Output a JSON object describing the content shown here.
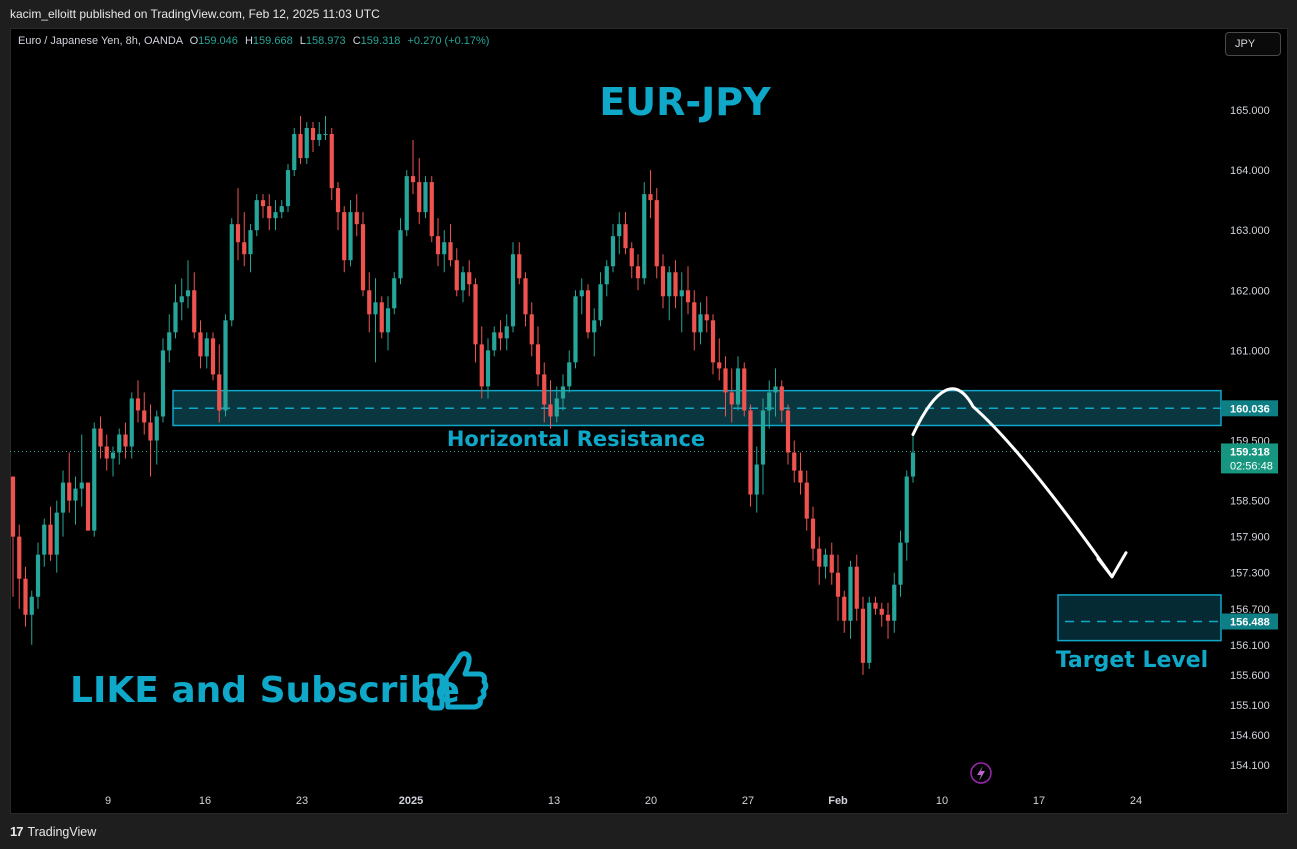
{
  "header": {
    "publisher_text": "kacim_elloitt published on TradingView.com, Feb 12, 2025 11:03 UTC"
  },
  "legend": {
    "symbol": "Euro / Japanese Yen, 8h, OANDA",
    "open_label": "O",
    "open": "159.046",
    "high_label": "H",
    "high": "159.668",
    "low_label": "L",
    "low": "158.973",
    "close_label": "C",
    "close": "159.318",
    "change": "+0.270 (+0.17%)"
  },
  "currency_button": "JPY",
  "footer": {
    "brand": "TradingView",
    "logo_text": "17"
  },
  "colors": {
    "up": "#26a69a",
    "down": "#ef5350",
    "accent": "#0fa8c9",
    "zone_fill": "#0b3f4a",
    "price_tag": "#0f7f86",
    "current_tag": "#17967f"
  },
  "icons": {
    "flash": "lightning-icon",
    "thumbs": "thumbs-up-icon"
  },
  "chart_data": {
    "type": "candlestick",
    "title": "EUR-JPY",
    "timeframe": "8h",
    "ylim": [
      153.8,
      166.0
    ],
    "y_ticks": [
      "165.000",
      "164.000",
      "163.000",
      "162.000",
      "161.000",
      "159.500",
      "158.500",
      "157.900",
      "157.300",
      "156.700",
      "156.100",
      "155.600",
      "155.100",
      "154.600",
      "154.100"
    ],
    "x_ticks": [
      "9",
      "16",
      "23",
      "2025",
      "13",
      "20",
      "27",
      "Feb",
      "10",
      "17",
      "24"
    ],
    "price_labels": {
      "resistance": "160.036",
      "current": "159.318",
      "countdown": "02:56:48",
      "target": "156.488"
    },
    "annotations": {
      "resistance_label": "Horizontal Resistance",
      "target_label": "Target Level",
      "promo": "LIKE and Subscribe"
    },
    "resistance_zone": [
      159.75,
      160.33
    ],
    "target_zone": [
      156.17,
      156.93
    ],
    "projection": {
      "from": 159.6,
      "peak": 160.1,
      "to": 156.9
    },
    "candles": [
      [
        158.9,
        158.9,
        156.9,
        157.9
      ],
      [
        157.9,
        158.1,
        156.7,
        157.2
      ],
      [
        157.2,
        157.4,
        156.4,
        156.6
      ],
      [
        156.6,
        157.0,
        156.1,
        156.9
      ],
      [
        156.9,
        157.8,
        156.7,
        157.6
      ],
      [
        157.6,
        158.2,
        157.4,
        158.1
      ],
      [
        158.1,
        158.4,
        157.5,
        157.6
      ],
      [
        157.6,
        158.5,
        157.3,
        158.3
      ],
      [
        158.3,
        159.0,
        157.9,
        158.8
      ],
      [
        158.8,
        159.3,
        158.3,
        158.5
      ],
      [
        158.5,
        158.9,
        158.1,
        158.7
      ],
      [
        158.7,
        159.6,
        158.4,
        158.8
      ],
      [
        158.8,
        158.8,
        158.0,
        158.0
      ],
      [
        158.0,
        159.8,
        157.9,
        159.7
      ],
      [
        159.7,
        159.9,
        159.2,
        159.4
      ],
      [
        159.4,
        159.6,
        159.0,
        159.2
      ],
      [
        159.2,
        159.4,
        158.9,
        159.3
      ],
      [
        159.3,
        159.7,
        159.1,
        159.6
      ],
      [
        159.6,
        159.8,
        159.2,
        159.4
      ],
      [
        159.4,
        160.3,
        159.2,
        160.2
      ],
      [
        160.2,
        160.5,
        159.8,
        160.0
      ],
      [
        160.0,
        160.3,
        159.6,
        159.8
      ],
      [
        159.8,
        160.1,
        158.9,
        159.5
      ],
      [
        159.5,
        160.0,
        159.1,
        159.9
      ],
      [
        159.9,
        161.2,
        159.8,
        161.0
      ],
      [
        161.0,
        161.6,
        160.8,
        161.3
      ],
      [
        161.3,
        162.1,
        161.2,
        161.8
      ],
      [
        161.8,
        162.2,
        161.5,
        161.9
      ],
      [
        161.9,
        162.5,
        161.7,
        162.0
      ],
      [
        162.0,
        162.3,
        161.2,
        161.3
      ],
      [
        161.3,
        161.5,
        160.7,
        160.9
      ],
      [
        160.9,
        161.3,
        160.7,
        161.2
      ],
      [
        161.2,
        161.3,
        160.5,
        160.6
      ],
      [
        160.6,
        161.1,
        159.8,
        160.0
      ],
      [
        160.0,
        161.6,
        159.9,
        161.5
      ],
      [
        161.5,
        163.2,
        161.4,
        163.1
      ],
      [
        163.1,
        163.7,
        162.5,
        162.8
      ],
      [
        162.8,
        163.3,
        162.4,
        162.6
      ],
      [
        162.6,
        163.1,
        162.3,
        163.0
      ],
      [
        163.0,
        163.6,
        162.9,
        163.5
      ],
      [
        163.5,
        163.6,
        163.2,
        163.4
      ],
      [
        163.4,
        163.6,
        163.0,
        163.2
      ],
      [
        163.2,
        163.5,
        163.0,
        163.3
      ],
      [
        163.3,
        163.5,
        163.2,
        163.4
      ],
      [
        163.4,
        164.1,
        163.3,
        164.0
      ],
      [
        164.0,
        164.7,
        163.9,
        164.6
      ],
      [
        164.6,
        164.9,
        164.1,
        164.2
      ],
      [
        164.2,
        164.8,
        164.1,
        164.7
      ],
      [
        164.7,
        164.8,
        164.3,
        164.5
      ],
      [
        164.5,
        164.8,
        164.4,
        164.6
      ],
      [
        164.6,
        164.9,
        164.5,
        164.6
      ],
      [
        164.6,
        164.7,
        163.5,
        163.7
      ],
      [
        163.7,
        163.8,
        163.0,
        163.3
      ],
      [
        163.3,
        163.4,
        162.3,
        162.5
      ],
      [
        162.5,
        163.5,
        162.4,
        163.3
      ],
      [
        163.3,
        163.6,
        162.9,
        163.1
      ],
      [
        163.1,
        163.3,
        161.9,
        162.0
      ],
      [
        162.0,
        162.3,
        161.3,
        161.6
      ],
      [
        161.6,
        162.2,
        160.8,
        161.8
      ],
      [
        161.8,
        161.9,
        161.2,
        161.3
      ],
      [
        161.3,
        161.9,
        161.0,
        161.7
      ],
      [
        161.7,
        162.3,
        161.6,
        162.2
      ],
      [
        162.2,
        163.2,
        162.1,
        163.0
      ],
      [
        163.0,
        164.0,
        162.9,
        163.9
      ],
      [
        163.9,
        164.5,
        163.6,
        163.8
      ],
      [
        163.8,
        164.2,
        163.1,
        163.3
      ],
      [
        163.3,
        163.9,
        163.2,
        163.8
      ],
      [
        163.8,
        163.9,
        162.8,
        162.9
      ],
      [
        162.9,
        163.2,
        162.4,
        162.6
      ],
      [
        162.6,
        163.0,
        162.3,
        162.8
      ],
      [
        162.8,
        163.1,
        162.4,
        162.5
      ],
      [
        162.5,
        162.7,
        161.9,
        162.0
      ],
      [
        162.0,
        162.4,
        161.8,
        162.3
      ],
      [
        162.3,
        162.5,
        161.9,
        162.1
      ],
      [
        162.1,
        162.2,
        160.8,
        161.1
      ],
      [
        161.1,
        161.4,
        160.2,
        160.4
      ],
      [
        160.4,
        161.2,
        160.2,
        161.0
      ],
      [
        161.0,
        161.4,
        160.9,
        161.3
      ],
      [
        161.3,
        161.5,
        161.0,
        161.2
      ],
      [
        161.2,
        161.6,
        161.0,
        161.4
      ],
      [
        161.4,
        162.8,
        161.3,
        162.6
      ],
      [
        162.6,
        162.8,
        162.1,
        162.2
      ],
      [
        162.2,
        162.3,
        161.4,
        161.6
      ],
      [
        161.6,
        161.8,
        160.9,
        161.1
      ],
      [
        161.1,
        161.4,
        160.4,
        160.6
      ],
      [
        160.6,
        160.8,
        159.8,
        160.1
      ],
      [
        160.1,
        160.5,
        159.7,
        159.9
      ],
      [
        159.9,
        160.4,
        159.8,
        160.2
      ],
      [
        160.2,
        160.6,
        160.0,
        160.4
      ],
      [
        160.4,
        161.0,
        160.3,
        160.8
      ],
      [
        160.8,
        162.0,
        160.7,
        161.9
      ],
      [
        161.9,
        162.2,
        161.6,
        162.0
      ],
      [
        162.0,
        162.1,
        161.2,
        161.3
      ],
      [
        161.3,
        161.7,
        160.9,
        161.5
      ],
      [
        161.5,
        162.3,
        161.4,
        162.1
      ],
      [
        162.1,
        162.5,
        161.9,
        162.4
      ],
      [
        162.4,
        163.1,
        162.3,
        162.9
      ],
      [
        162.9,
        163.3,
        162.6,
        163.1
      ],
      [
        163.1,
        163.3,
        162.6,
        162.7
      ],
      [
        162.7,
        162.8,
        162.2,
        162.4
      ],
      [
        162.4,
        162.6,
        162.0,
        162.2
      ],
      [
        162.2,
        163.8,
        162.1,
        163.6
      ],
      [
        163.6,
        164.0,
        163.2,
        163.5
      ],
      [
        163.5,
        163.7,
        162.2,
        162.4
      ],
      [
        162.4,
        162.6,
        161.7,
        161.9
      ],
      [
        161.9,
        162.4,
        161.5,
        162.3
      ],
      [
        162.3,
        162.5,
        161.7,
        161.9
      ],
      [
        161.9,
        162.3,
        161.3,
        162.0
      ],
      [
        162.0,
        162.4,
        161.6,
        161.8
      ],
      [
        161.8,
        162.0,
        161.0,
        161.3
      ],
      [
        161.3,
        161.8,
        161.1,
        161.6
      ],
      [
        161.6,
        161.9,
        161.3,
        161.5
      ],
      [
        161.5,
        161.6,
        160.6,
        160.8
      ],
      [
        160.8,
        161.2,
        160.5,
        160.7
      ],
      [
        160.7,
        160.9,
        159.9,
        160.3
      ],
      [
        160.3,
        160.7,
        159.8,
        160.1
      ],
      [
        160.1,
        160.9,
        160.0,
        160.7
      ],
      [
        160.7,
        160.8,
        159.9,
        160.0
      ],
      [
        160.0,
        160.1,
        158.4,
        158.6
      ],
      [
        158.6,
        159.4,
        158.3,
        159.1
      ],
      [
        159.1,
        160.2,
        158.6,
        160.0
      ],
      [
        160.0,
        160.5,
        159.7,
        160.3
      ],
      [
        160.3,
        160.7,
        159.9,
        160.4
      ],
      [
        160.4,
        160.5,
        159.8,
        160.0
      ],
      [
        160.0,
        160.1,
        159.1,
        159.3
      ],
      [
        159.3,
        159.5,
        158.8,
        159.0
      ],
      [
        159.0,
        159.3,
        158.6,
        158.8
      ],
      [
        158.8,
        159.0,
        158.0,
        158.2
      ],
      [
        158.2,
        158.4,
        157.5,
        157.7
      ],
      [
        157.7,
        157.9,
        157.1,
        157.4
      ],
      [
        157.4,
        157.7,
        157.2,
        157.6
      ],
      [
        157.6,
        157.8,
        157.1,
        157.3
      ],
      [
        157.3,
        157.6,
        156.5,
        156.9
      ],
      [
        156.9,
        157.0,
        156.3,
        156.5
      ],
      [
        156.5,
        157.5,
        156.2,
        157.4
      ],
      [
        157.4,
        157.6,
        156.5,
        156.7
      ],
      [
        156.7,
        156.9,
        155.6,
        155.8
      ],
      [
        155.8,
        156.9,
        155.7,
        156.8
      ],
      [
        156.8,
        156.9,
        156.6,
        156.7
      ],
      [
        156.7,
        156.8,
        156.4,
        156.6
      ],
      [
        156.6,
        156.8,
        156.2,
        156.5
      ],
      [
        156.5,
        157.3,
        156.3,
        157.1
      ],
      [
        157.1,
        158.0,
        156.9,
        157.8
      ],
      [
        157.8,
        159.0,
        157.5,
        158.9
      ],
      [
        158.9,
        159.6,
        158.8,
        159.3
      ]
    ]
  }
}
